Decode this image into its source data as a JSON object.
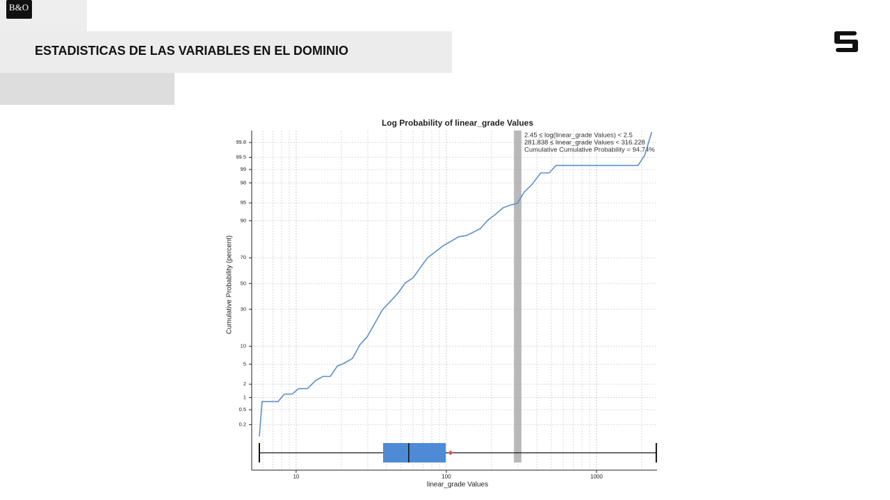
{
  "header": {
    "logo": "B&O",
    "title": "ESTADISTICAS DE LAS VARIABLES EN EL DOMINIO"
  },
  "chart_data": {
    "type": "line",
    "title": "Log Probability of linear_grade Values",
    "x_label": "linear_grade Values",
    "y_label": "Cumulative Probability (percent)",
    "x_scale": "log",
    "y_scale": "probability",
    "grid": true,
    "color": "#5b8fc9",
    "xlim": [
      5.06,
      2530
    ],
    "ylim": [
      0.007,
      99.91
    ],
    "xticks": [
      10,
      100,
      1000
    ],
    "xminorticks": [
      6,
      7,
      8,
      9,
      20,
      30,
      40,
      50,
      60,
      70,
      80,
      90,
      200,
      300,
      400,
      500,
      600,
      700,
      800,
      900,
      2000
    ],
    "yticks": [
      0.2,
      0.5,
      1,
      2,
      5,
      10,
      30,
      50,
      70,
      90,
      95,
      98,
      99,
      99.5,
      99.8
    ],
    "x": [
      5.69,
      5.93,
      7.58,
      8.34,
      9.4,
      10.4,
      11.9,
      13.5,
      15.1,
      16.9,
      18.8,
      20.9,
      23.7,
      26.6,
      29.7,
      37.5,
      47.5,
      53.3,
      59.9,
      74.9,
      95.5,
      121,
      136,
      168,
      190,
      211,
      239,
      266,
      297,
      330,
      370,
      425,
      484,
      537,
      1889,
      2094,
      2330
    ],
    "values": [
      0.09,
      0.8,
      0.8,
      1.2,
      1.2,
      1.6,
      1.6,
      2.4,
      2.9,
      2.9,
      4.6,
      5.2,
      6.3,
      10.6,
      13.8,
      29.5,
      42,
      50.5,
      54.5,
      70,
      78,
      83,
      83.6,
      86.8,
      90.3,
      92,
      93.9,
      94.5,
      94.9,
      96.9,
      97.8,
      98.8,
      98.8,
      99.2,
      99.2,
      99.56,
      99.9
    ],
    "box": {
      "min": 5.69,
      "q1": 37.9,
      "median": 56.2,
      "q3": 99.1,
      "max": 2500,
      "mean": 106.6,
      "color": "#4f8ad6",
      "mean_color": "#d9534f"
    },
    "highlight": [
      281.838,
      316.228
    ],
    "annotations": [
      "2.45 ≤ log(linear_grade Values) < 2.5",
      "281.838 ≤ linear_grade Values < 316.228",
      "Cumulative Cumulative Probability = 94.74%"
    ]
  }
}
